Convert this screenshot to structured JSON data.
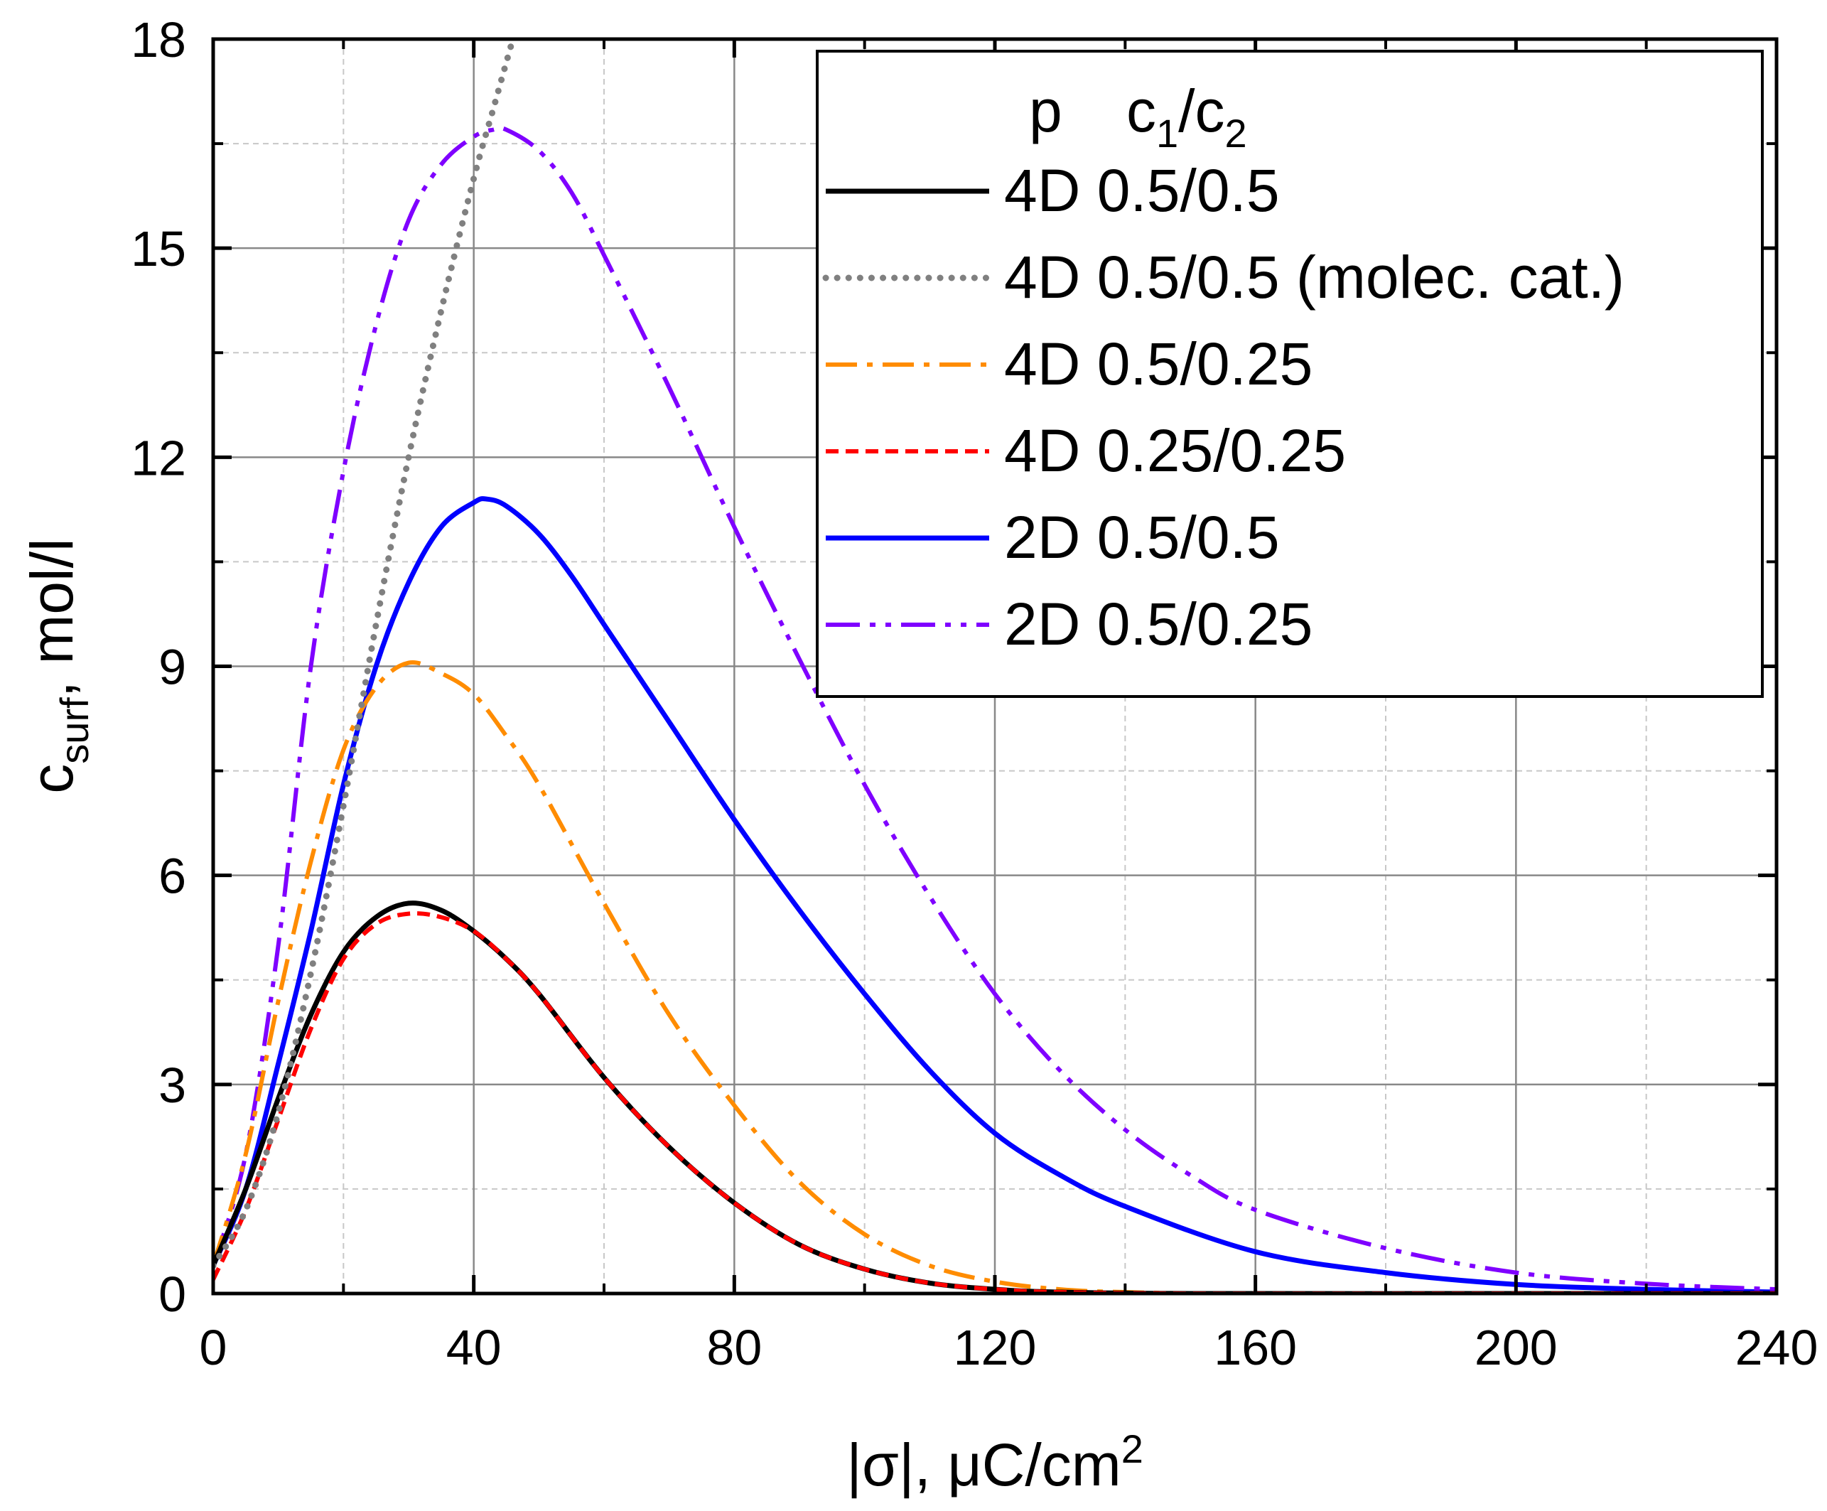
{
  "chart_data": {
    "type": "line",
    "title": "",
    "xlabel": "|σ|, μC/cm",
    "xlabel_superscript": "2",
    "ylabel": "c",
    "ylabel_subscript": "surf",
    "ylabel_suffix": ", mol/l",
    "xlim": [
      0,
      240
    ],
    "ylim": [
      0,
      18
    ],
    "xticks": [
      0,
      40,
      80,
      120,
      160,
      200,
      240
    ],
    "yticks": [
      0,
      3,
      6,
      9,
      12,
      15,
      18
    ],
    "grid": true,
    "legend": {
      "position": "top-right",
      "header_p": "p",
      "header_c": "c",
      "header_sub1": "1",
      "header_slash": "/c",
      "header_sub2": "2"
    },
    "series": [
      {
        "name": "4D 0.5/0.5",
        "color": "#000000",
        "style": "solid",
        "x": [
          0,
          5,
          10,
          15,
          20,
          25,
          30,
          35,
          40,
          45,
          50,
          60,
          70,
          80,
          90,
          100,
          110,
          120,
          130,
          150,
          200,
          240
        ],
        "y": [
          0.4,
          1.5,
          2.8,
          4.0,
          4.9,
          5.4,
          5.6,
          5.5,
          5.2,
          4.8,
          4.3,
          3.1,
          2.1,
          1.3,
          0.7,
          0.35,
          0.15,
          0.06,
          0.02,
          0.0,
          0.0,
          0.0
        ]
      },
      {
        "name": "4D 0.5/0.5 (molec. cat.)",
        "color": "#808080",
        "style": "dotted",
        "x": [
          0,
          5,
          10,
          15,
          20,
          25,
          30,
          35,
          40,
          43,
          46
        ],
        "y": [
          0.4,
          1.2,
          2.6,
          4.6,
          7.0,
          9.6,
          12.0,
          14.1,
          16.0,
          17.0,
          18.0
        ]
      },
      {
        "name": "4D 0.5/0.25",
        "color": "#FF8C00",
        "style": "dash-dot",
        "x": [
          0,
          5,
          10,
          15,
          20,
          25,
          30,
          35,
          40,
          45,
          50,
          60,
          70,
          80,
          90,
          100,
          110,
          120,
          130,
          140,
          160,
          240
        ],
        "y": [
          0.4,
          2.0,
          4.2,
          6.2,
          7.8,
          8.7,
          9.05,
          8.9,
          8.6,
          8.0,
          7.3,
          5.6,
          4.0,
          2.7,
          1.6,
          0.85,
          0.4,
          0.17,
          0.06,
          0.02,
          0.0,
          0.0
        ]
      },
      {
        "name": "4D 0.25/0.25",
        "color": "#FF0000",
        "style": "dashed",
        "x": [
          0,
          5,
          10,
          15,
          20,
          25,
          30,
          35,
          40,
          45,
          50,
          60,
          70,
          80,
          90,
          100,
          110,
          120,
          130,
          150,
          200,
          240
        ],
        "y": [
          0.2,
          1.2,
          2.5,
          3.8,
          4.8,
          5.3,
          5.45,
          5.4,
          5.2,
          4.8,
          4.3,
          3.1,
          2.1,
          1.3,
          0.7,
          0.35,
          0.15,
          0.06,
          0.02,
          0.0,
          0.0,
          0.0
        ]
      },
      {
        "name": "2D 0.5/0.5",
        "color": "#0000FF",
        "style": "solid",
        "x": [
          0,
          5,
          10,
          15,
          20,
          25,
          30,
          35,
          40,
          42,
          45,
          50,
          55,
          60,
          70,
          80,
          90,
          100,
          110,
          120,
          130,
          140,
          160,
          180,
          200,
          220,
          240
        ],
        "y": [
          0.4,
          1.5,
          3.3,
          5.2,
          7.3,
          9.0,
          10.2,
          11.0,
          11.35,
          11.4,
          11.3,
          10.9,
          10.3,
          9.6,
          8.2,
          6.8,
          5.5,
          4.3,
          3.2,
          2.3,
          1.7,
          1.25,
          0.6,
          0.3,
          0.13,
          0.06,
          0.02
        ]
      },
      {
        "name": "2D 0.5/0.25",
        "color": "#7F00FF",
        "style": "dash-dot-dot",
        "x": [
          0,
          5,
          10,
          15,
          20,
          25,
          30,
          35,
          40,
          43,
          45,
          50,
          55,
          60,
          70,
          80,
          90,
          100,
          110,
          120,
          130,
          140,
          150,
          160,
          180,
          200,
          220,
          240
        ],
        "y": [
          0.4,
          2.0,
          5.0,
          9.0,
          11.8,
          13.9,
          15.4,
          16.2,
          16.6,
          16.7,
          16.7,
          16.4,
          15.8,
          14.9,
          13.0,
          11.0,
          9.1,
          7.3,
          5.7,
          4.3,
          3.2,
          2.35,
          1.7,
          1.2,
          0.65,
          0.3,
          0.14,
          0.06
        ]
      }
    ]
  }
}
